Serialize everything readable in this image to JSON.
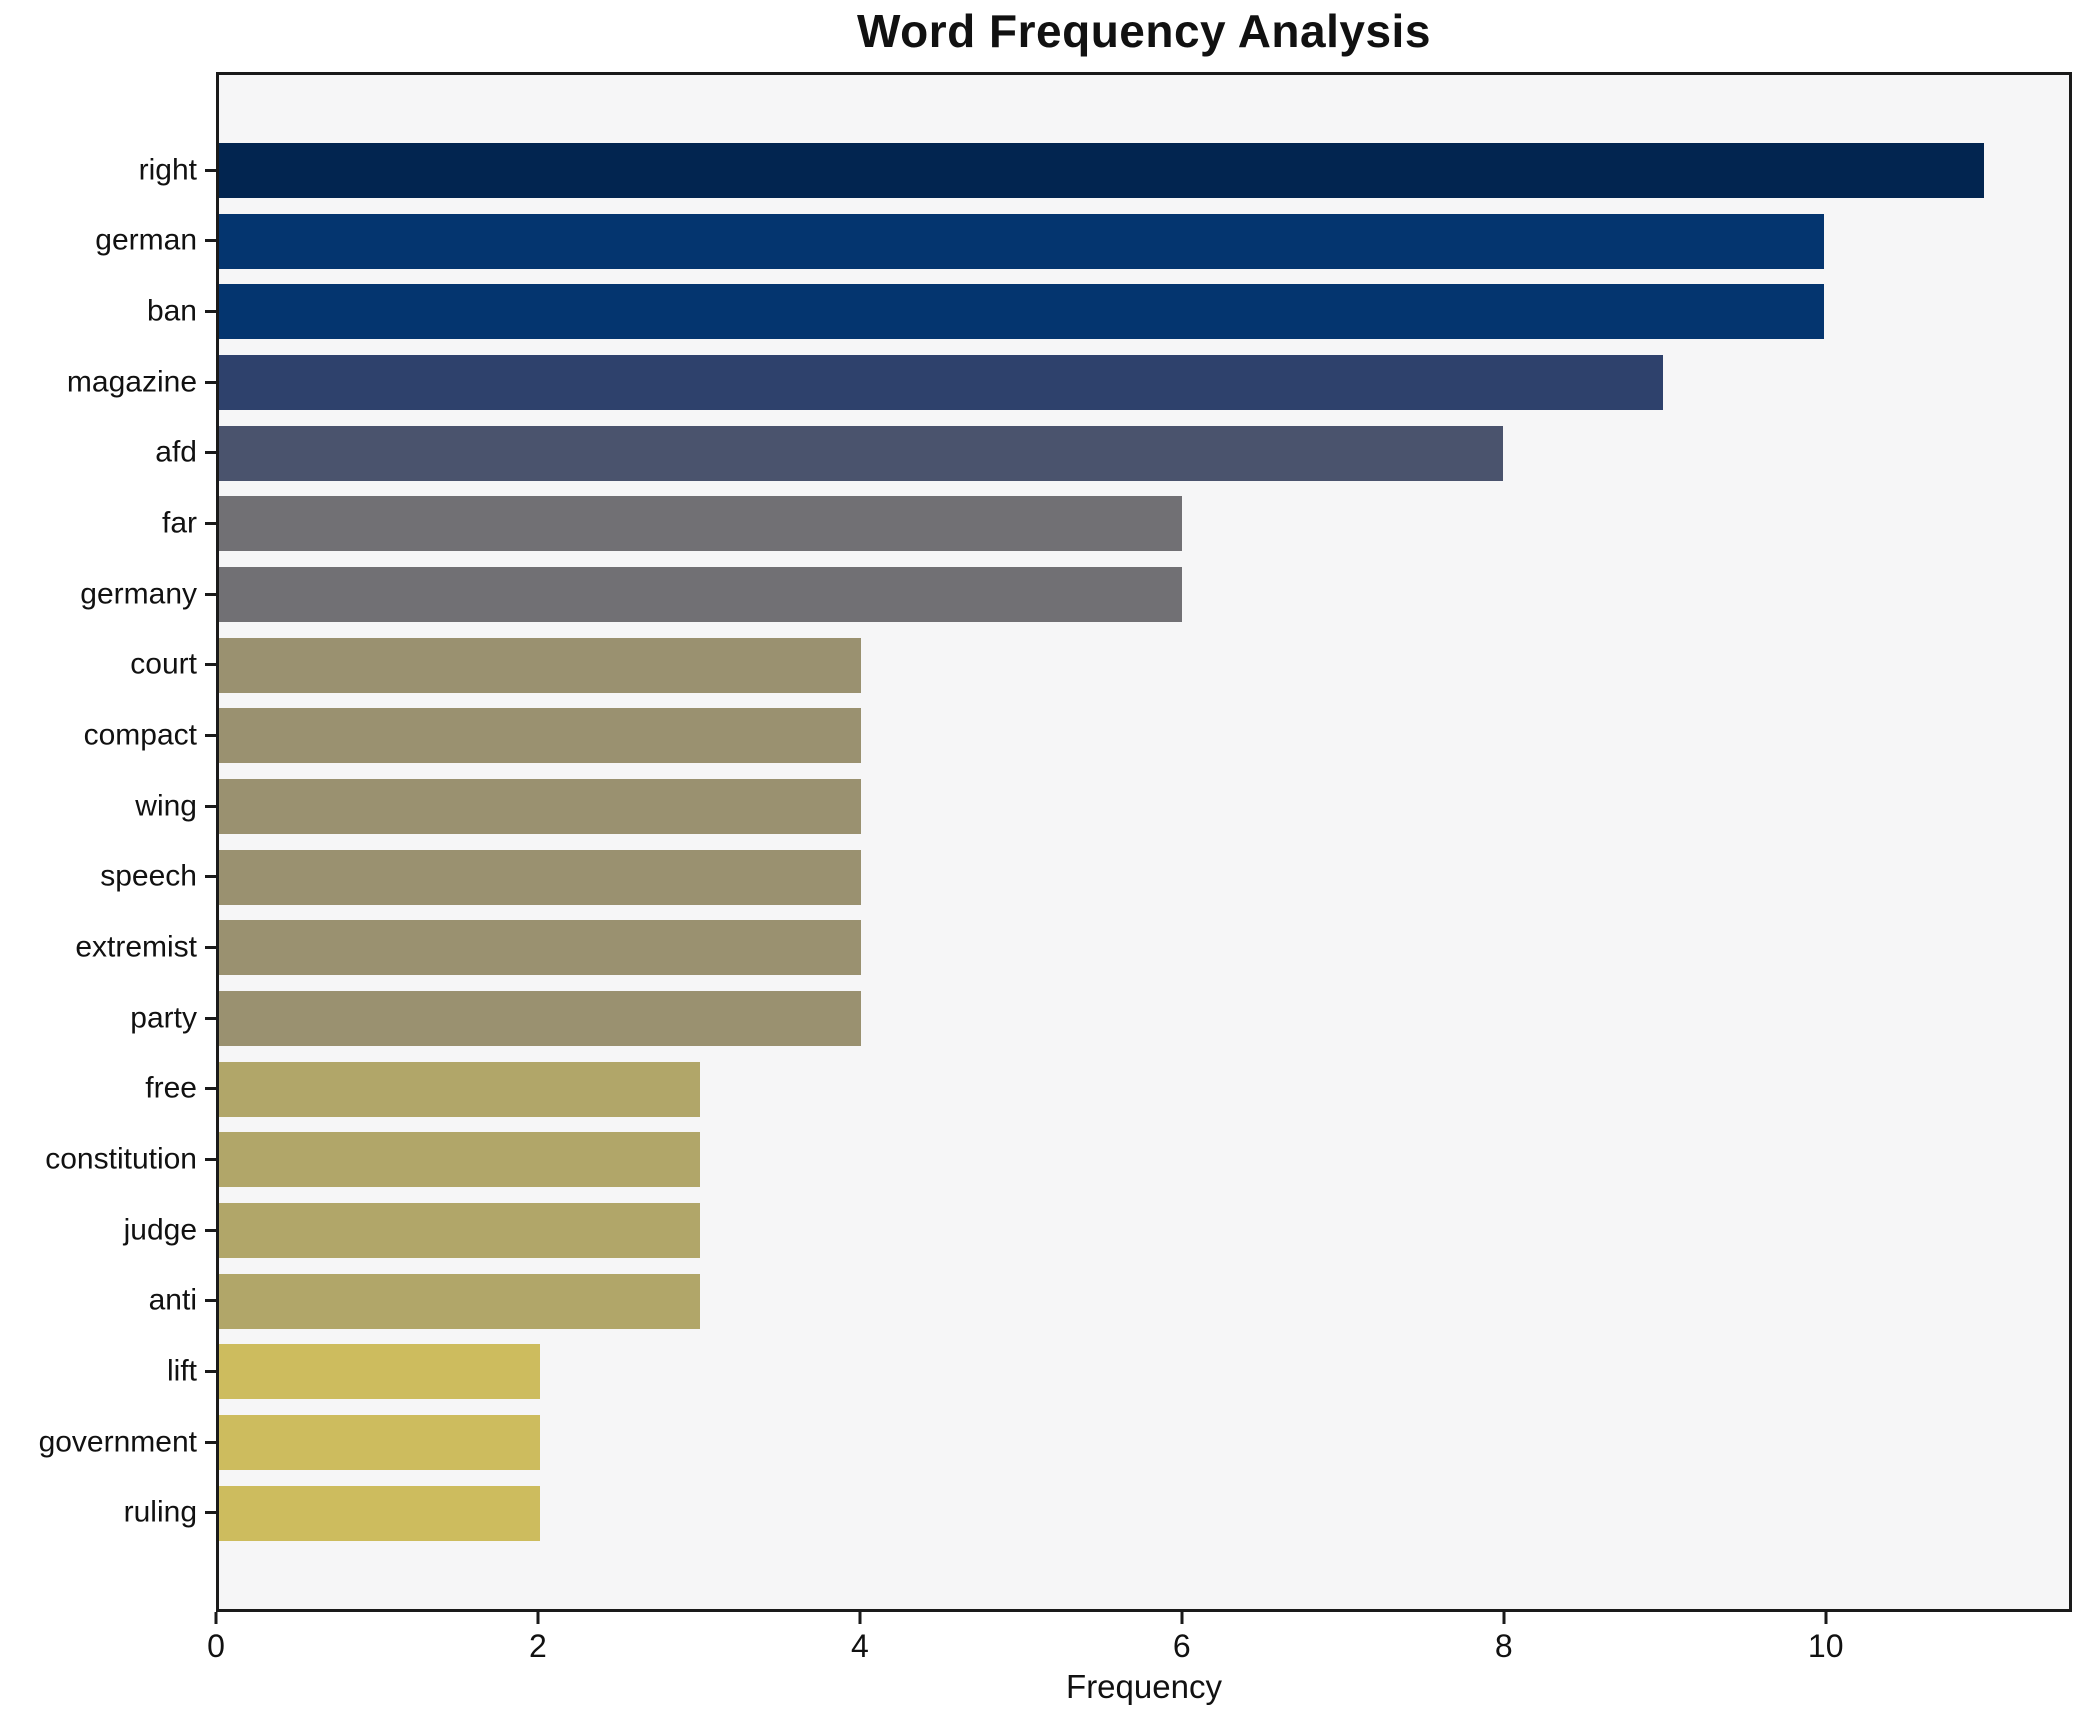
{
  "title": "Word Frequency Analysis",
  "xlabel": "Frequency",
  "chart_data": {
    "type": "bar",
    "orientation": "horizontal",
    "title": "Word Frequency Analysis",
    "xlabel": "Frequency",
    "ylabel": "",
    "categories": [
      "right",
      "german",
      "ban",
      "magazine",
      "afd",
      "far",
      "germany",
      "court",
      "compact",
      "wing",
      "speech",
      "extremist",
      "party",
      "free",
      "constitution",
      "judge",
      "anti",
      "lift",
      "government",
      "ruling"
    ],
    "values": [
      11,
      10,
      10,
      9,
      8,
      6,
      6,
      4,
      4,
      4,
      4,
      4,
      4,
      3,
      3,
      3,
      3,
      2,
      2,
      2
    ],
    "bar_colors": [
      "#022550",
      "#04356f",
      "#04356f",
      "#2e416c",
      "#4a536d",
      "#717074",
      "#717074",
      "#9a9170",
      "#9a9170",
      "#9a9170",
      "#9a9170",
      "#9a9170",
      "#9a9170",
      "#b1a669",
      "#b1a669",
      "#b1a669",
      "#b1a669",
      "#cdbc5e",
      "#cdbc5e",
      "#cdbc5e"
    ],
    "xlim": [
      0,
      11.53
    ],
    "xticks": [
      0,
      2,
      4,
      6,
      8,
      10
    ],
    "grid": false,
    "legend": null,
    "plot_bg": "#f6f6f7",
    "page_bg": "#ffffff",
    "axis_color": "#1a1a1a"
  }
}
